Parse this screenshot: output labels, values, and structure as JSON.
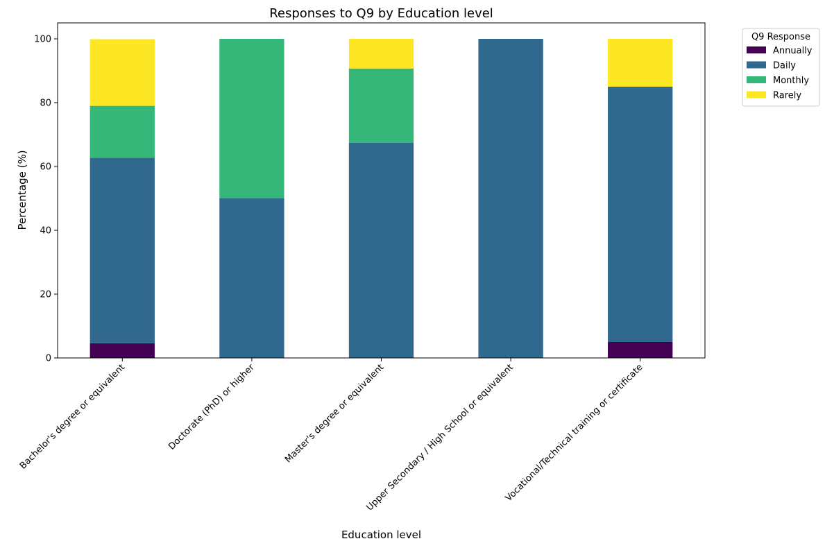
{
  "chart_data": {
    "type": "bar",
    "stacked": true,
    "title": "Responses to Q9 by Education level",
    "xlabel": "Education level",
    "ylabel": "Percentage (%)",
    "ylim": [
      0,
      105
    ],
    "yticks": [
      0,
      20,
      40,
      60,
      80,
      100
    ],
    "grid": false,
    "legend_title": "Q9 Response",
    "legend_placement": "outside top-right",
    "categories": [
      "Bachelor's degree or equivalent",
      "Doctorate (PhD) or higher",
      "Master's degree or equivalent",
      "Upper Secondary / High School or equivalent",
      "Vocational/Technical training or certificate"
    ],
    "series": [
      {
        "name": "Annually",
        "color": "#440154",
        "values": [
          4.6,
          0,
          0,
          0,
          5.0
        ]
      },
      {
        "name": "Daily",
        "color": "#31688e",
        "values": [
          58.1,
          50.0,
          67.4,
          100,
          80.0
        ]
      },
      {
        "name": "Monthly",
        "color": "#35b779",
        "values": [
          16.3,
          50.0,
          23.3,
          0,
          0
        ]
      },
      {
        "name": "Rarely",
        "color": "#fde725",
        "values": [
          20.9,
          0,
          9.3,
          0,
          15.0
        ]
      }
    ]
  }
}
